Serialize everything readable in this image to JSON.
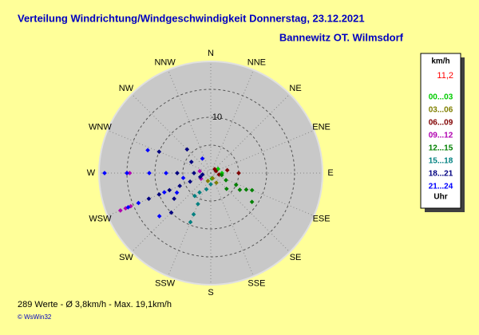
{
  "chart_data": {
    "type": "wind-rose-scatter",
    "title": "Verteilung Windrichtung/Windgeschwindigkeit  Donnerstag, 23.12.2021",
    "subtitle": "Bannewitz OT. Wilmsdorf",
    "directions": [
      "N",
      "NNE",
      "NE",
      "ENE",
      "E",
      "ESE",
      "SE",
      "SSE",
      "S",
      "SSW",
      "SW",
      "WSW",
      "W",
      "WNW",
      "NW",
      "NNW"
    ],
    "rlim": [
      0,
      20
    ],
    "rgrid": [
      5,
      10,
      15
    ],
    "rticks": [
      10
    ],
    "legend": {
      "unit": "km/h",
      "current": "11,2",
      "footer": "Uhr"
    },
    "series": [
      {
        "name": "00...03",
        "color": "#00cc00",
        "dir": [
          90,
          170,
          60
        ],
        "speed": [
          2,
          1,
          1.5
        ]
      },
      {
        "name": "03...06",
        "color": "#808000",
        "dir": [
          150,
          160,
          200
        ],
        "speed": [
          2,
          1,
          1.5
        ]
      },
      {
        "name": "06...09",
        "color": "#800000",
        "dir": [
          90,
          80,
          70,
          100,
          45
        ],
        "speed": [
          5,
          3,
          1,
          1.5,
          1
        ]
      },
      {
        "name": "09...12",
        "color": "#b000b0",
        "dir": [
          270,
          270,
          247.5,
          247.5,
          247.5,
          280,
          240
        ],
        "speed": [
          14.5,
          15,
          17.5,
          16.5,
          15.5,
          2,
          2
        ]
      },
      {
        "name": "12...15",
        "color": "#008000",
        "dir": [
          115,
          115,
          115,
          112.5,
          120,
          100,
          125,
          135
        ],
        "speed": [
          3,
          5,
          7,
          8,
          6,
          2,
          9,
          4
        ]
      },
      {
        "name": "15...18",
        "color": "#008080",
        "dir": [
          202.5,
          202.5,
          202.5,
          210,
          195,
          180,
          215
        ],
        "speed": [
          6,
          8,
          9.5,
          4,
          3,
          2,
          5
        ]
      },
      {
        "name": "18...21",
        "color": "#000080",
        "dir": [
          247.5,
          247.5,
          247.5,
          247.5,
          247.5,
          270,
          270,
          235,
          225,
          292.5,
          300,
          315,
          250,
          260
        ],
        "speed": [
          12,
          10,
          8,
          6,
          4,
          6,
          3,
          8,
          10,
          10,
          4,
          6,
          2,
          1.5
        ]
      },
      {
        "name": "21...24",
        "color": "#0000ff",
        "dir": [
          270,
          270,
          270,
          270,
          247.5,
          247.5,
          247.5,
          240,
          230,
          290,
          330,
          260
        ],
        "speed": [
          19,
          15,
          11,
          8,
          14,
          16,
          9,
          7,
          12,
          12,
          3,
          5
        ]
      }
    ],
    "footer": "289 Werte  -  Ø 3,8km/h  -  Max. 19,1km/h",
    "copyright": "© WsWin32"
  }
}
